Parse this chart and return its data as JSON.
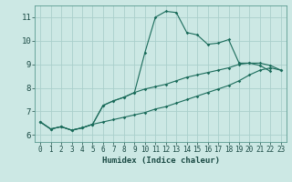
{
  "xlabel": "Humidex (Indice chaleur)",
  "bg_color": "#cce8e4",
  "grid_color": "#aacfcb",
  "line_color": "#1a6b5a",
  "xlim": [
    -0.5,
    23.5
  ],
  "ylim": [
    5.7,
    11.5
  ],
  "xticks": [
    0,
    1,
    2,
    3,
    4,
    5,
    6,
    7,
    8,
    9,
    10,
    11,
    12,
    13,
    14,
    15,
    16,
    17,
    18,
    19,
    20,
    21,
    22,
    23
  ],
  "yticks": [
    6,
    7,
    8,
    9,
    10,
    11
  ],
  "series1_x": [
    0,
    1,
    2,
    3,
    4,
    5,
    6,
    7,
    8,
    9,
    10,
    11,
    12,
    13,
    14,
    15,
    16,
    17,
    18,
    19,
    20,
    21,
    22
  ],
  "series1_y": [
    6.55,
    6.25,
    6.35,
    6.2,
    6.3,
    6.45,
    7.25,
    7.45,
    7.6,
    7.8,
    9.5,
    11.0,
    11.25,
    11.2,
    10.35,
    10.25,
    9.85,
    9.9,
    10.05,
    9.05,
    9.05,
    8.95,
    8.7
  ],
  "series2_x": [
    0,
    1,
    2,
    3,
    4,
    5,
    6,
    7,
    8,
    9,
    10,
    11,
    12,
    13,
    14,
    15,
    16,
    17,
    18,
    19,
    20,
    21,
    22,
    23
  ],
  "series2_y": [
    6.55,
    6.25,
    6.35,
    6.2,
    6.3,
    6.45,
    6.55,
    6.65,
    6.75,
    6.85,
    6.95,
    7.1,
    7.2,
    7.35,
    7.5,
    7.65,
    7.8,
    7.95,
    8.1,
    8.3,
    8.55,
    8.75,
    8.85,
    8.75
  ],
  "series3_x": [
    0,
    1,
    2,
    3,
    4,
    5,
    6,
    7,
    8,
    9,
    10,
    11,
    12,
    13,
    14,
    15,
    16,
    17,
    18,
    19,
    20,
    21,
    22,
    23
  ],
  "series3_y": [
    6.55,
    6.25,
    6.35,
    6.2,
    6.3,
    6.45,
    7.25,
    7.45,
    7.6,
    7.8,
    7.95,
    8.05,
    8.15,
    8.3,
    8.45,
    8.55,
    8.65,
    8.75,
    8.85,
    9.0,
    9.05,
    9.05,
    8.95,
    8.75
  ]
}
